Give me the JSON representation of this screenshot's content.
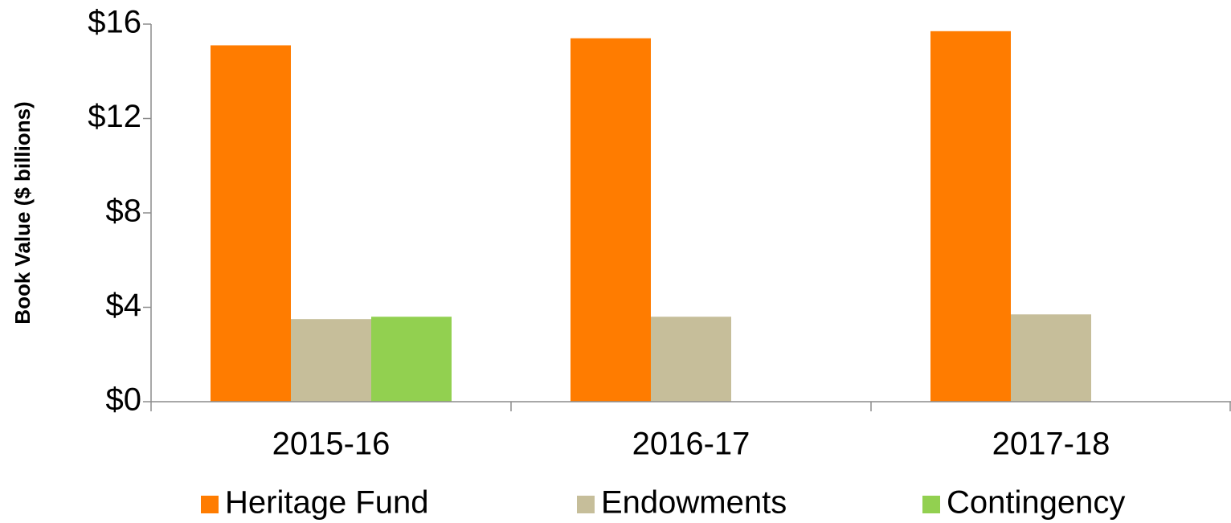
{
  "chart_data": {
    "type": "bar",
    "y_label": "Book Value ($ billions)",
    "categories": [
      "2015-16",
      "2016-17",
      "2017-18"
    ],
    "series": [
      {
        "name": "Heritage Fund",
        "color": "#ff7c00",
        "values": [
          15.1,
          15.4,
          15.7
        ]
      },
      {
        "name": "Endowments",
        "color": "#c6be9a",
        "values": [
          3.5,
          3.6,
          3.7
        ]
      },
      {
        "name": "Contingency",
        "color": "#92d050",
        "values": [
          3.6,
          null,
          null
        ]
      }
    ],
    "ylim": [
      0,
      16
    ],
    "yticks": [
      {
        "value": 0,
        "label": "$0"
      },
      {
        "value": 4,
        "label": "$4"
      },
      {
        "value": 8,
        "label": "$8"
      },
      {
        "value": 12,
        "label": "$12"
      },
      {
        "value": 16,
        "label": "$16"
      }
    ],
    "legend": "bottom"
  }
}
